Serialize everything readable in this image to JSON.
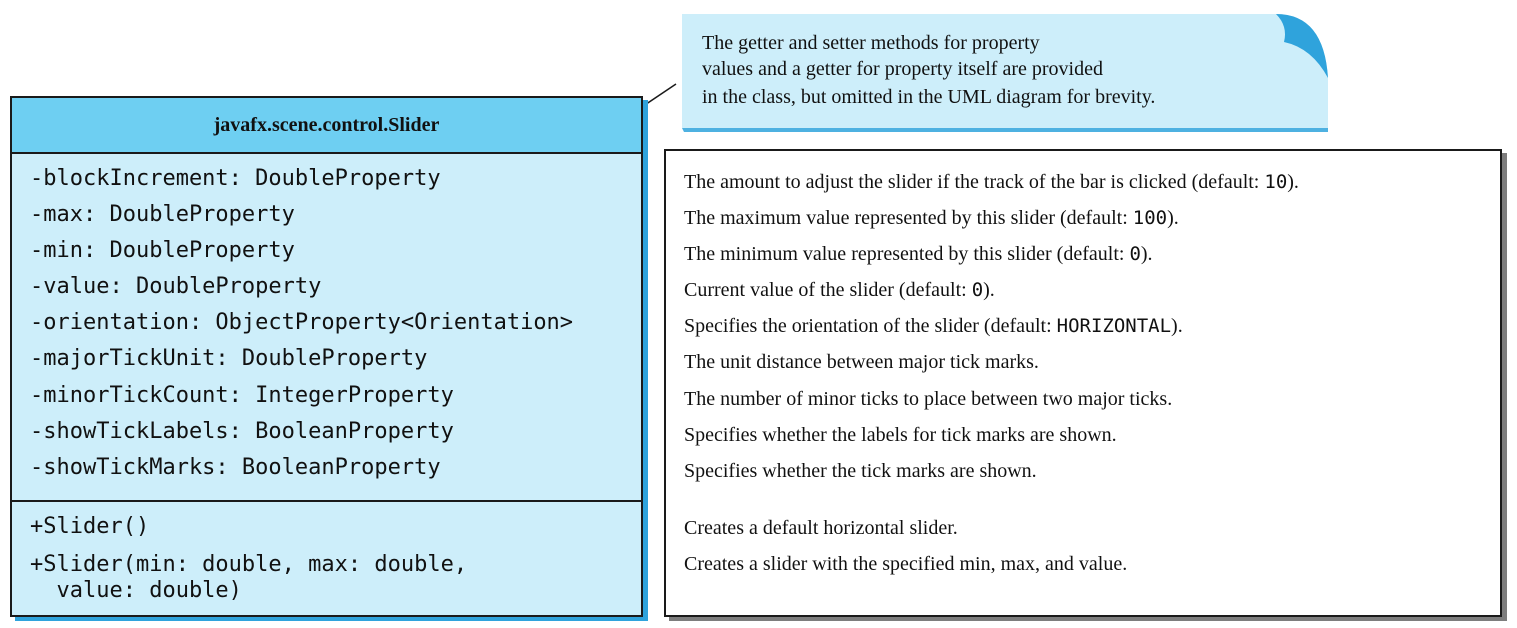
{
  "uml": {
    "class_name": "javafx.scene.control.Slider",
    "attributes": [
      "-blockIncrement: DoubleProperty",
      "-max: DoubleProperty",
      "-min: DoubleProperty",
      "-value: DoubleProperty",
      "-orientation: ObjectProperty<Orientation>",
      "-majorTickUnit: DoubleProperty",
      "-minorTickCount: IntegerProperty",
      "-showTickLabels: BooleanProperty",
      "-showTickMarks: BooleanProperty"
    ],
    "methods": [
      "+Slider()",
      "+Slider(min: double, max: double,",
      "  value: double)"
    ]
  },
  "descriptions": {
    "attributes": [
      {
        "text": "The amount to adjust the slider if the track of the bar is clicked (default: ",
        "code": "10",
        "suffix": ")."
      },
      {
        "text": "The maximum value represented by this slider (default: ",
        "code": "100",
        "suffix": ")."
      },
      {
        "text": "The minimum value represented by this slider (default: ",
        "code": "0",
        "suffix": ")."
      },
      {
        "text": "Current value of the slider (default: ",
        "code": "0",
        "suffix": ")."
      },
      {
        "text": "Specifies the orientation of the slider (default: ",
        "code": "HORIZONTAL",
        "suffix": ")."
      },
      {
        "text": "The unit distance between major tick marks.",
        "code": "",
        "suffix": ""
      },
      {
        "text": "The number of minor ticks to place between two major ticks.",
        "code": "",
        "suffix": ""
      },
      {
        "text": "Specifies whether the labels for tick marks are shown.",
        "code": "",
        "suffix": ""
      },
      {
        "text": "Specifies whether the tick marks are shown.",
        "code": "",
        "suffix": ""
      }
    ],
    "methods": [
      "Creates a default horizontal slider.",
      "Creates a slider with the specified min, max, and value."
    ]
  },
  "note": {
    "lines": [
      "The getter and setter methods for property",
      "values and a getter for property itself are provided",
      "in the class, but omitted in the UML diagram for brevity."
    ]
  },
  "colors": {
    "uml_header": "#6ecff2",
    "uml_body": "#cdeefa",
    "uml_shadow": "#2fa3dc",
    "note_fill": "#cdeefa",
    "note_curl": "#2fa3dc",
    "desc_shadow": "#7d7d7d"
  }
}
